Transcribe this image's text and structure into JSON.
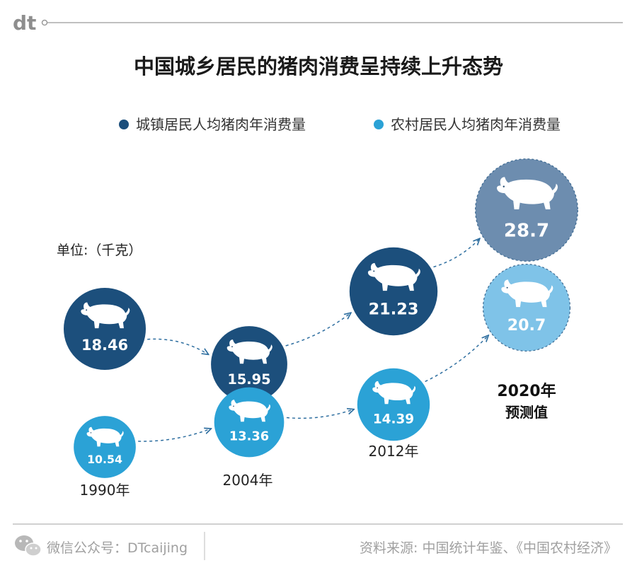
{
  "header": {
    "logo_text": "dt"
  },
  "chart_data": {
    "type": "scatter",
    "title": "中国城乡居民的猪肉消费呈持续上升态势",
    "unit_label": "单位:（千克）",
    "legend_position": "top",
    "x_labels": [
      "1990年",
      "2004年",
      "2012年"
    ],
    "forecast_label": [
      "2020年",
      "预测值"
    ],
    "series": [
      {
        "name": "城镇居民人均猪肉年消费量",
        "color": "#1c4f7c",
        "forecast_color": "#6d8daf",
        "points": [
          {
            "year": 1990,
            "value": 18.46
          },
          {
            "year": 2004,
            "value": 15.95
          },
          {
            "year": 2012,
            "value": 21.23
          },
          {
            "year": 2020,
            "value": 28.7,
            "forecast": true
          }
        ]
      },
      {
        "name": "农村居民人均猪肉年消费量",
        "color": "#2ba2d6",
        "forecast_color": "#7fc3e8",
        "points": [
          {
            "year": 1990,
            "value": 10.54
          },
          {
            "year": 2004,
            "value": 13.36
          },
          {
            "year": 2012,
            "value": 14.39
          },
          {
            "year": 2020,
            "value": 20.7,
            "forecast": true
          }
        ]
      }
    ],
    "value_labels": {
      "urban": [
        "18.46",
        "15.95",
        "21.23",
        "28.7"
      ],
      "rural": [
        "10.54",
        "13.36",
        "14.39",
        "20.7"
      ]
    }
  },
  "footer": {
    "wechat_label": "微信公众号：DTcaijing",
    "source_label": "资料来源: 中国统计年鉴、《中国农村经济》"
  },
  "colors": {
    "urban": "#1c4f7c",
    "rural": "#2ba2d6",
    "text": "#222222",
    "muted": "#9a9a9a"
  }
}
